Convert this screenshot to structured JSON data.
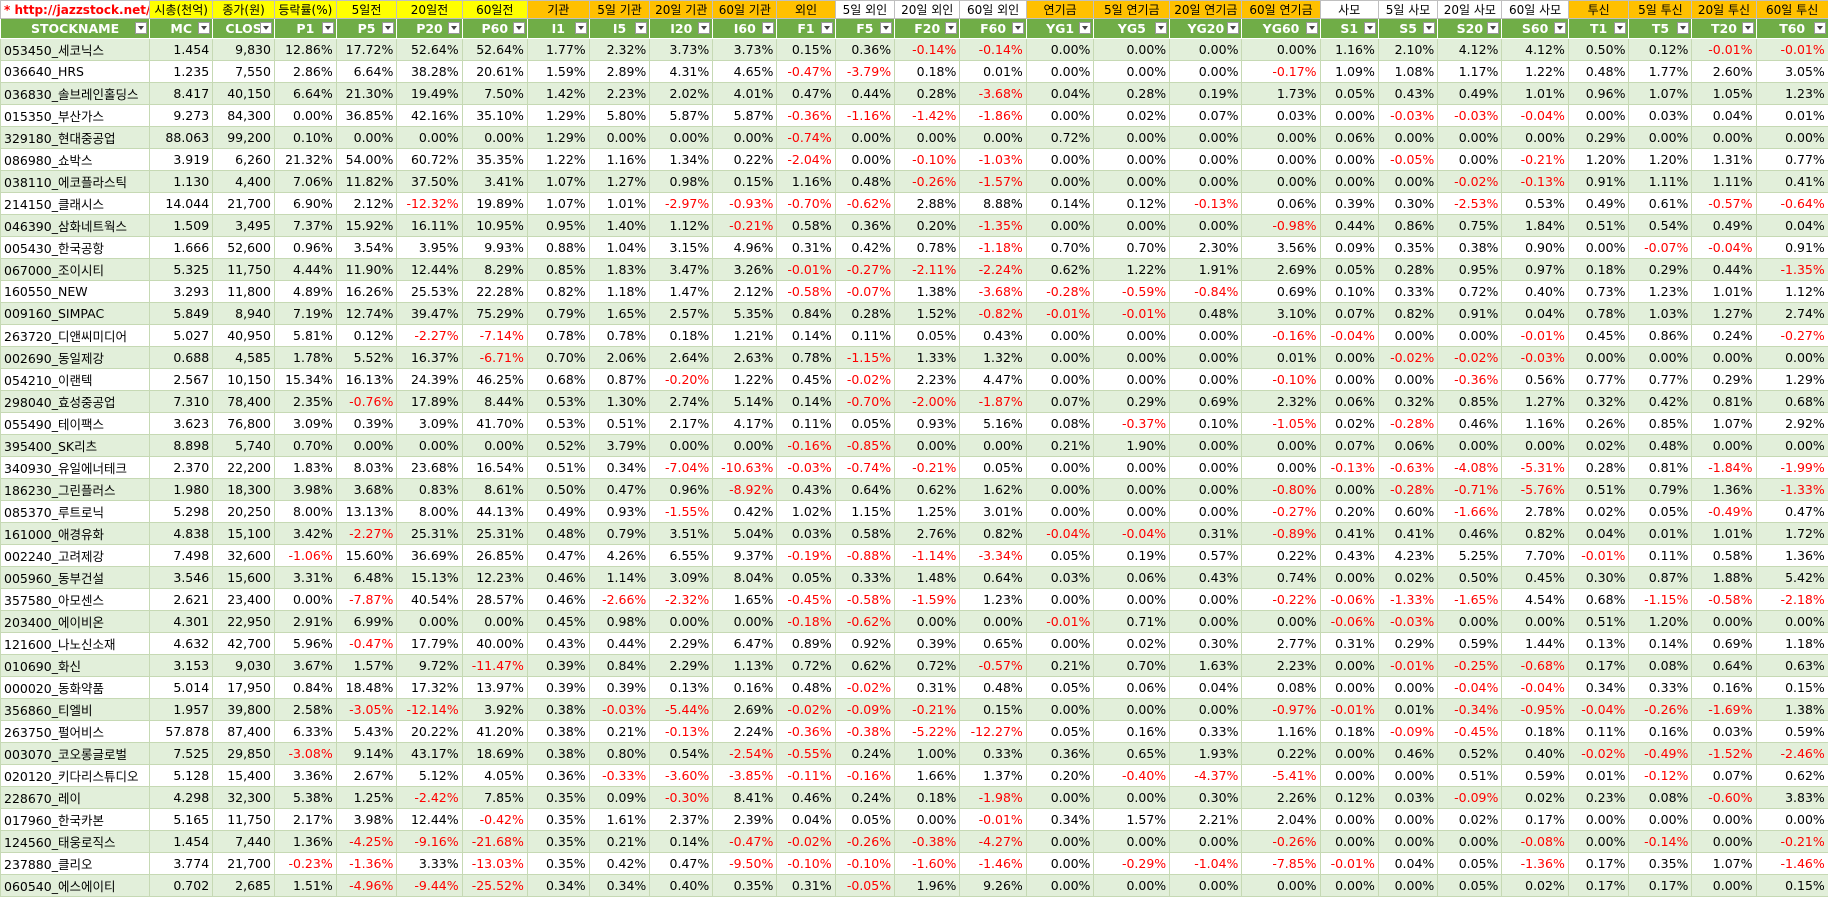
{
  "table": {
    "group_header": [
      "* http://jazzstock.net/ 활용",
      "시총(천억)",
      "종가(원)",
      "등락률(%)",
      "5일전",
      "20일전",
      "60일전",
      "기관",
      "5일 기관",
      "20일 기관",
      "60일 기관",
      "외인",
      "5일 외인",
      "20일 외인",
      "60일 외인",
      "연기금",
      "5일 연기금",
      "20일 연기금",
      "60일 연기금",
      "사모",
      "5일 사모",
      "20일 사모",
      "60일 사모",
      "투신",
      "5일 투신",
      "20일 투신",
      "60일 투신"
    ],
    "columns": [
      "STOCKNAME",
      "MC",
      "CLOS",
      "P1",
      "P5",
      "P20",
      "P60",
      "I1",
      "I5",
      "I20",
      "I60",
      "F1",
      "F5",
      "F20",
      "F60",
      "YG1",
      "YG5",
      "YG20",
      "YG60",
      "S1",
      "S5",
      "S20",
      "S60",
      "T1",
      "T5",
      "T20",
      "T60"
    ],
    "rows": [
      [
        "053450_세코닉스",
        "1.454",
        "9,830",
        "12.86%",
        "17.72%",
        "52.64%",
        "52.64%",
        "1.77%",
        "2.32%",
        "3.73%",
        "3.73%",
        "0.15%",
        "0.36%",
        "-0.14%",
        "-0.14%",
        "0.00%",
        "0.00%",
        "0.00%",
        "0.00%",
        "1.16%",
        "2.10%",
        "4.12%",
        "4.12%",
        "0.50%",
        "0.12%",
        "-0.01%",
        "-0.01%"
      ],
      [
        "036640_HRS",
        "1.235",
        "7,550",
        "2.86%",
        "6.64%",
        "38.28%",
        "20.61%",
        "1.59%",
        "2.89%",
        "4.31%",
        "4.65%",
        "-0.47%",
        "-3.79%",
        "0.18%",
        "0.01%",
        "0.00%",
        "0.00%",
        "0.00%",
        "-0.17%",
        "1.09%",
        "1.08%",
        "1.17%",
        "1.22%",
        "0.48%",
        "1.77%",
        "2.60%",
        "3.05%"
      ],
      [
        "036830_솔브레인홀딩스",
        "8.417",
        "40,150",
        "6.64%",
        "21.30%",
        "19.49%",
        "7.50%",
        "1.42%",
        "2.23%",
        "2.02%",
        "4.01%",
        "0.47%",
        "0.44%",
        "0.28%",
        "-3.68%",
        "0.04%",
        "0.28%",
        "0.19%",
        "1.73%",
        "0.05%",
        "0.43%",
        "0.49%",
        "1.01%",
        "0.96%",
        "1.07%",
        "1.05%",
        "1.23%"
      ],
      [
        "015350_부산가스",
        "9.273",
        "84,300",
        "0.00%",
        "36.85%",
        "42.16%",
        "35.10%",
        "1.29%",
        "5.80%",
        "5.87%",
        "5.87%",
        "-0.36%",
        "-1.16%",
        "-1.42%",
        "-1.86%",
        "0.00%",
        "0.02%",
        "0.07%",
        "0.03%",
        "0.00%",
        "-0.03%",
        "-0.03%",
        "-0.04%",
        "0.00%",
        "0.03%",
        "0.04%",
        "0.01%"
      ],
      [
        "329180_현대중공업",
        "88.063",
        "99,200",
        "0.10%",
        "0.00%",
        "0.00%",
        "0.00%",
        "1.29%",
        "0.00%",
        "0.00%",
        "0.00%",
        "-0.74%",
        "0.00%",
        "0.00%",
        "0.00%",
        "0.72%",
        "0.00%",
        "0.00%",
        "0.00%",
        "0.06%",
        "0.00%",
        "0.00%",
        "0.00%",
        "0.29%",
        "0.00%",
        "0.00%",
        "0.00%"
      ],
      [
        "086980_쇼박스",
        "3.919",
        "6,260",
        "21.32%",
        "54.00%",
        "60.72%",
        "35.35%",
        "1.22%",
        "1.16%",
        "1.34%",
        "0.22%",
        "-2.04%",
        "0.00%",
        "-0.10%",
        "-1.03%",
        "0.00%",
        "0.00%",
        "0.00%",
        "0.00%",
        "0.00%",
        "-0.05%",
        "0.00%",
        "-0.21%",
        "1.20%",
        "1.20%",
        "1.31%",
        "0.77%"
      ],
      [
        "038110_에코플라스틱",
        "1.130",
        "4,400",
        "7.06%",
        "11.82%",
        "37.50%",
        "3.41%",
        "1.07%",
        "1.27%",
        "0.98%",
        "0.15%",
        "1.16%",
        "0.48%",
        "-0.26%",
        "-1.57%",
        "0.00%",
        "0.00%",
        "0.00%",
        "0.00%",
        "0.00%",
        "0.00%",
        "-0.02%",
        "-0.13%",
        "0.91%",
        "1.11%",
        "1.11%",
        "0.41%"
      ],
      [
        "214150_클래시스",
        "14.044",
        "21,700",
        "6.90%",
        "2.12%",
        "-12.32%",
        "19.89%",
        "1.07%",
        "1.01%",
        "-2.97%",
        "-0.93%",
        "-0.70%",
        "-0.62%",
        "2.88%",
        "8.88%",
        "0.14%",
        "0.12%",
        "-0.13%",
        "0.06%",
        "0.39%",
        "0.30%",
        "-2.53%",
        "0.53%",
        "0.49%",
        "0.61%",
        "-0.57%",
        "-0.64%"
      ],
      [
        "046390_삼화네트웍스",
        "1.509",
        "3,495",
        "7.37%",
        "15.92%",
        "16.11%",
        "10.95%",
        "0.95%",
        "1.40%",
        "1.12%",
        "-0.21%",
        "0.58%",
        "0.36%",
        "0.20%",
        "-1.35%",
        "0.00%",
        "0.00%",
        "0.00%",
        "-0.98%",
        "0.44%",
        "0.86%",
        "0.75%",
        "1.84%",
        "0.51%",
        "0.54%",
        "0.49%",
        "0.04%"
      ],
      [
        "005430_한국공항",
        "1.666",
        "52,600",
        "0.96%",
        "3.54%",
        "3.95%",
        "9.93%",
        "0.88%",
        "1.04%",
        "3.15%",
        "4.96%",
        "0.31%",
        "0.42%",
        "0.78%",
        "-1.18%",
        "0.70%",
        "0.70%",
        "2.30%",
        "3.56%",
        "0.09%",
        "0.35%",
        "0.38%",
        "0.90%",
        "0.00%",
        "-0.07%",
        "-0.04%",
        "0.91%"
      ],
      [
        "067000_조이시티",
        "5.325",
        "11,750",
        "4.44%",
        "11.90%",
        "12.44%",
        "8.29%",
        "0.85%",
        "1.83%",
        "3.47%",
        "3.26%",
        "-0.01%",
        "-0.27%",
        "-2.11%",
        "-2.24%",
        "0.62%",
        "1.22%",
        "1.91%",
        "2.69%",
        "0.05%",
        "0.28%",
        "0.95%",
        "0.97%",
        "0.18%",
        "0.29%",
        "0.44%",
        "-1.35%"
      ],
      [
        "160550_NEW",
        "3.293",
        "11,800",
        "4.89%",
        "16.26%",
        "25.53%",
        "22.28%",
        "0.82%",
        "1.18%",
        "1.47%",
        "2.12%",
        "-0.58%",
        "-0.07%",
        "1.38%",
        "-3.68%",
        "-0.28%",
        "-0.59%",
        "-0.84%",
        "0.69%",
        "0.10%",
        "0.33%",
        "0.72%",
        "0.40%",
        "0.73%",
        "1.23%",
        "1.01%",
        "1.12%"
      ],
      [
        "009160_SIMPAC",
        "5.849",
        "8,940",
        "7.19%",
        "12.74%",
        "39.47%",
        "75.29%",
        "0.79%",
        "1.65%",
        "2.57%",
        "5.35%",
        "0.84%",
        "0.28%",
        "1.52%",
        "-0.82%",
        "-0.01%",
        "-0.01%",
        "0.48%",
        "3.10%",
        "0.07%",
        "0.82%",
        "0.91%",
        "0.04%",
        "0.78%",
        "1.03%",
        "1.27%",
        "2.74%"
      ],
      [
        "263720_디앤씨미디어",
        "5.027",
        "40,950",
        "5.81%",
        "0.12%",
        "-2.27%",
        "-7.14%",
        "0.78%",
        "0.78%",
        "0.18%",
        "1.21%",
        "0.14%",
        "0.11%",
        "0.05%",
        "0.43%",
        "0.00%",
        "0.00%",
        "0.00%",
        "-0.16%",
        "-0.04%",
        "0.00%",
        "0.00%",
        "-0.01%",
        "0.45%",
        "0.86%",
        "0.24%",
        "-0.27%"
      ],
      [
        "002690_동일제강",
        "0.688",
        "4,585",
        "1.78%",
        "5.52%",
        "16.37%",
        "-6.71%",
        "0.70%",
        "2.06%",
        "2.64%",
        "2.63%",
        "0.78%",
        "-1.15%",
        "1.33%",
        "1.32%",
        "0.00%",
        "0.00%",
        "0.00%",
        "0.01%",
        "0.00%",
        "-0.02%",
        "-0.02%",
        "-0.03%",
        "0.00%",
        "0.00%",
        "0.00%",
        "0.00%"
      ],
      [
        "054210_이랜텍",
        "2.567",
        "10,150",
        "15.34%",
        "16.13%",
        "24.39%",
        "46.25%",
        "0.68%",
        "0.87%",
        "-0.20%",
        "1.22%",
        "0.45%",
        "-0.02%",
        "2.23%",
        "4.47%",
        "0.00%",
        "0.00%",
        "0.00%",
        "-0.10%",
        "0.00%",
        "0.00%",
        "-0.36%",
        "0.56%",
        "0.77%",
        "0.77%",
        "0.29%",
        "1.29%"
      ],
      [
        "298040_효성중공업",
        "7.310",
        "78,400",
        "2.35%",
        "-0.76%",
        "17.89%",
        "8.44%",
        "0.53%",
        "1.30%",
        "2.74%",
        "5.14%",
        "0.14%",
        "-0.70%",
        "-2.00%",
        "-1.87%",
        "0.07%",
        "0.29%",
        "0.69%",
        "2.32%",
        "0.06%",
        "0.32%",
        "0.85%",
        "1.27%",
        "0.32%",
        "0.42%",
        "0.81%",
        "0.68%"
      ],
      [
        "055490_테이팩스",
        "3.623",
        "76,800",
        "3.09%",
        "0.39%",
        "3.09%",
        "41.70%",
        "0.53%",
        "0.51%",
        "2.17%",
        "4.17%",
        "0.11%",
        "0.05%",
        "0.93%",
        "5.16%",
        "0.08%",
        "-0.37%",
        "0.10%",
        "-1.05%",
        "0.02%",
        "-0.28%",
        "0.46%",
        "1.16%",
        "0.26%",
        "0.85%",
        "1.07%",
        "2.92%"
      ],
      [
        "395400_SK리츠",
        "8.898",
        "5,740",
        "0.70%",
        "0.00%",
        "0.00%",
        "0.00%",
        "0.52%",
        "3.79%",
        "0.00%",
        "0.00%",
        "-0.16%",
        "-0.85%",
        "0.00%",
        "0.00%",
        "0.21%",
        "1.90%",
        "0.00%",
        "0.00%",
        "0.07%",
        "0.06%",
        "0.00%",
        "0.00%",
        "0.02%",
        "0.48%",
        "0.00%",
        "0.00%"
      ],
      [
        "340930_유일에너테크",
        "2.370",
        "22,200",
        "1.83%",
        "8.03%",
        "23.68%",
        "16.54%",
        "0.51%",
        "0.34%",
        "-7.04%",
        "-10.63%",
        "-0.03%",
        "-0.74%",
        "-0.21%",
        "0.05%",
        "0.00%",
        "0.00%",
        "0.00%",
        "0.00%",
        "-0.13%",
        "-0.63%",
        "-4.08%",
        "-5.31%",
        "0.28%",
        "0.81%",
        "-1.84%",
        "-1.99%"
      ],
      [
        "186230_그린플러스",
        "1.980",
        "18,300",
        "3.98%",
        "3.68%",
        "0.83%",
        "8.61%",
        "0.50%",
        "0.47%",
        "0.96%",
        "-8.92%",
        "0.43%",
        "0.64%",
        "0.62%",
        "1.62%",
        "0.00%",
        "0.00%",
        "0.00%",
        "-0.80%",
        "0.00%",
        "-0.28%",
        "-0.71%",
        "-5.76%",
        "0.51%",
        "0.79%",
        "1.36%",
        "-1.33%"
      ],
      [
        "085370_루트로닉",
        "5.298",
        "20,250",
        "8.00%",
        "13.13%",
        "8.00%",
        "44.13%",
        "0.49%",
        "0.93%",
        "-1.55%",
        "0.42%",
        "1.02%",
        "1.15%",
        "1.25%",
        "3.01%",
        "0.00%",
        "0.00%",
        "0.00%",
        "-0.27%",
        "0.20%",
        "0.60%",
        "-1.66%",
        "2.78%",
        "0.02%",
        "0.05%",
        "-0.49%",
        "0.47%"
      ],
      [
        "161000_애경유화",
        "4.838",
        "15,100",
        "3.42%",
        "-2.27%",
        "25.31%",
        "25.31%",
        "0.48%",
        "0.79%",
        "3.51%",
        "5.04%",
        "0.03%",
        "0.58%",
        "2.76%",
        "0.82%",
        "-0.04%",
        "-0.04%",
        "0.31%",
        "-0.89%",
        "0.41%",
        "0.41%",
        "0.46%",
        "0.82%",
        "0.04%",
        "0.01%",
        "1.01%",
        "1.72%"
      ],
      [
        "002240_고려제강",
        "7.498",
        "32,600",
        "-1.06%",
        "15.60%",
        "36.69%",
        "26.85%",
        "0.47%",
        "4.26%",
        "6.55%",
        "9.37%",
        "-0.19%",
        "-0.88%",
        "-1.14%",
        "-3.34%",
        "0.05%",
        "0.19%",
        "0.57%",
        "0.22%",
        "0.43%",
        "4.23%",
        "5.25%",
        "7.70%",
        "-0.01%",
        "0.11%",
        "0.58%",
        "1.36%"
      ],
      [
        "005960_동부건설",
        "3.546",
        "15,600",
        "3.31%",
        "6.48%",
        "15.13%",
        "12.23%",
        "0.46%",
        "1.14%",
        "3.09%",
        "8.04%",
        "0.05%",
        "0.33%",
        "1.48%",
        "0.64%",
        "0.03%",
        "0.06%",
        "0.43%",
        "0.74%",
        "0.00%",
        "0.02%",
        "0.50%",
        "0.45%",
        "0.30%",
        "0.87%",
        "1.88%",
        "5.42%"
      ],
      [
        "357580_아모센스",
        "2.621",
        "23,400",
        "0.00%",
        "-7.87%",
        "40.54%",
        "28.57%",
        "0.46%",
        "-2.66%",
        "-2.32%",
        "1.65%",
        "-0.45%",
        "-0.58%",
        "-1.59%",
        "1.23%",
        "0.00%",
        "0.00%",
        "0.00%",
        "-0.22%",
        "-0.06%",
        "-1.33%",
        "-1.65%",
        "4.54%",
        "0.68%",
        "-1.15%",
        "-0.58%",
        "-2.18%"
      ],
      [
        "203400_에이비온",
        "4.301",
        "22,950",
        "2.91%",
        "6.99%",
        "0.00%",
        "0.00%",
        "0.45%",
        "0.98%",
        "0.00%",
        "0.00%",
        "-0.18%",
        "-0.62%",
        "0.00%",
        "0.00%",
        "-0.01%",
        "0.71%",
        "0.00%",
        "0.00%",
        "-0.06%",
        "-0.03%",
        "0.00%",
        "0.00%",
        "0.51%",
        "1.20%",
        "0.00%",
        "0.00%"
      ],
      [
        "121600_나노신소재",
        "4.632",
        "42,700",
        "5.96%",
        "-0.47%",
        "17.79%",
        "40.00%",
        "0.43%",
        "0.44%",
        "2.29%",
        "6.47%",
        "0.89%",
        "0.92%",
        "0.39%",
        "0.65%",
        "0.00%",
        "0.02%",
        "0.30%",
        "2.77%",
        "0.31%",
        "0.29%",
        "0.59%",
        "1.44%",
        "0.13%",
        "0.14%",
        "0.69%",
        "1.18%"
      ],
      [
        "010690_화신",
        "3.153",
        "9,030",
        "3.67%",
        "1.57%",
        "9.72%",
        "-11.47%",
        "0.39%",
        "0.84%",
        "2.29%",
        "1.13%",
        "0.72%",
        "0.62%",
        "0.72%",
        "-0.57%",
        "0.21%",
        "0.70%",
        "1.63%",
        "2.23%",
        "0.00%",
        "-0.01%",
        "-0.25%",
        "-0.68%",
        "0.17%",
        "0.08%",
        "0.64%",
        "0.63%"
      ],
      [
        "000020_동화약품",
        "5.014",
        "17,950",
        "0.84%",
        "18.48%",
        "17.32%",
        "13.97%",
        "0.39%",
        "0.39%",
        "0.13%",
        "0.16%",
        "0.48%",
        "-0.02%",
        "0.31%",
        "0.48%",
        "0.05%",
        "0.06%",
        "0.04%",
        "0.08%",
        "0.00%",
        "0.00%",
        "-0.04%",
        "-0.04%",
        "0.34%",
        "0.33%",
        "0.16%",
        "0.15%"
      ],
      [
        "356860_티엘비",
        "1.957",
        "39,800",
        "2.58%",
        "-3.05%",
        "-12.14%",
        "3.92%",
        "0.38%",
        "-0.03%",
        "-5.44%",
        "2.69%",
        "-0.02%",
        "-0.09%",
        "-0.21%",
        "0.15%",
        "0.00%",
        "0.00%",
        "0.00%",
        "-0.97%",
        "-0.01%",
        "0.01%",
        "-0.34%",
        "-0.95%",
        "-0.04%",
        "-0.26%",
        "-1.69%",
        "1.38%"
      ],
      [
        "263750_펄어비스",
        "57.878",
        "87,400",
        "6.33%",
        "5.43%",
        "20.22%",
        "41.20%",
        "0.38%",
        "0.21%",
        "-0.13%",
        "2.24%",
        "-0.36%",
        "-0.38%",
        "-5.22%",
        "-12.27%",
        "0.05%",
        "0.16%",
        "0.33%",
        "1.16%",
        "0.18%",
        "-0.09%",
        "-0.45%",
        "0.18%",
        "0.11%",
        "0.16%",
        "0.03%",
        "0.59%"
      ],
      [
        "003070_코오롱글로벌",
        "7.525",
        "29,850",
        "-3.08%",
        "9.14%",
        "43.17%",
        "18.69%",
        "0.38%",
        "0.80%",
        "0.54%",
        "-2.54%",
        "-0.55%",
        "0.24%",
        "1.00%",
        "0.33%",
        "0.36%",
        "0.65%",
        "1.93%",
        "0.22%",
        "0.00%",
        "0.46%",
        "0.52%",
        "0.40%",
        "-0.02%",
        "-0.49%",
        "-1.52%",
        "-2.46%"
      ],
      [
        "020120_키다리스튜디오",
        "5.128",
        "15,400",
        "3.36%",
        "2.67%",
        "5.12%",
        "4.05%",
        "0.36%",
        "-0.33%",
        "-3.60%",
        "-3.85%",
        "-0.11%",
        "-0.16%",
        "1.66%",
        "1.37%",
        "0.20%",
        "-0.40%",
        "-4.37%",
        "-5.41%",
        "0.00%",
        "0.00%",
        "0.51%",
        "0.59%",
        "0.01%",
        "-0.12%",
        "0.07%",
        "0.62%"
      ],
      [
        "228670_레이",
        "4.298",
        "32,300",
        "5.38%",
        "1.25%",
        "-2.42%",
        "7.85%",
        "0.35%",
        "0.09%",
        "-0.30%",
        "8.41%",
        "0.46%",
        "0.24%",
        "0.18%",
        "-1.98%",
        "0.00%",
        "0.00%",
        "0.30%",
        "2.26%",
        "0.12%",
        "0.03%",
        "-0.09%",
        "0.02%",
        "0.23%",
        "0.08%",
        "-0.60%",
        "3.83%"
      ],
      [
        "017960_한국카본",
        "5.165",
        "11,750",
        "2.17%",
        "3.98%",
        "12.44%",
        "-0.42%",
        "0.35%",
        "1.61%",
        "2.37%",
        "2.39%",
        "0.04%",
        "0.05%",
        "0.00%",
        "-0.01%",
        "0.34%",
        "1.57%",
        "2.21%",
        "2.04%",
        "0.00%",
        "0.00%",
        "0.02%",
        "0.17%",
        "0.00%",
        "0.00%",
        "0.00%",
        "0.00%"
      ],
      [
        "124560_태웅로직스",
        "1.454",
        "7,440",
        "1.36%",
        "-4.25%",
        "-9.16%",
        "-21.68%",
        "0.35%",
        "0.21%",
        "0.14%",
        "-0.47%",
        "-0.02%",
        "-0.26%",
        "-0.38%",
        "-4.27%",
        "0.00%",
        "0.00%",
        "0.00%",
        "-0.26%",
        "0.00%",
        "0.00%",
        "0.00%",
        "-0.08%",
        "0.00%",
        "-0.14%",
        "0.00%",
        "-0.21%"
      ],
      [
        "237880_클리오",
        "3.774",
        "21,700",
        "-0.23%",
        "-1.36%",
        "3.33%",
        "-13.03%",
        "0.35%",
        "0.42%",
        "0.47%",
        "-9.50%",
        "-0.10%",
        "-0.10%",
        "-1.60%",
        "-1.46%",
        "0.00%",
        "-0.29%",
        "-1.04%",
        "-7.85%",
        "-0.01%",
        "0.04%",
        "0.05%",
        "-1.36%",
        "0.17%",
        "0.35%",
        "1.07%",
        "-1.46%"
      ],
      [
        "060540_에스에이티",
        "0.702",
        "2,685",
        "1.51%",
        "-4.96%",
        "-9.44%",
        "-25.52%",
        "0.34%",
        "0.34%",
        "0.40%",
        "0.35%",
        "0.31%",
        "-0.05%",
        "1.96%",
        "9.26%",
        "0.00%",
        "0.00%",
        "0.00%",
        "0.00%",
        "0.00%",
        "0.00%",
        "0.05%",
        "0.02%",
        "0.17%",
        "0.17%",
        "0.00%",
        "0.15%"
      ]
    ]
  }
}
